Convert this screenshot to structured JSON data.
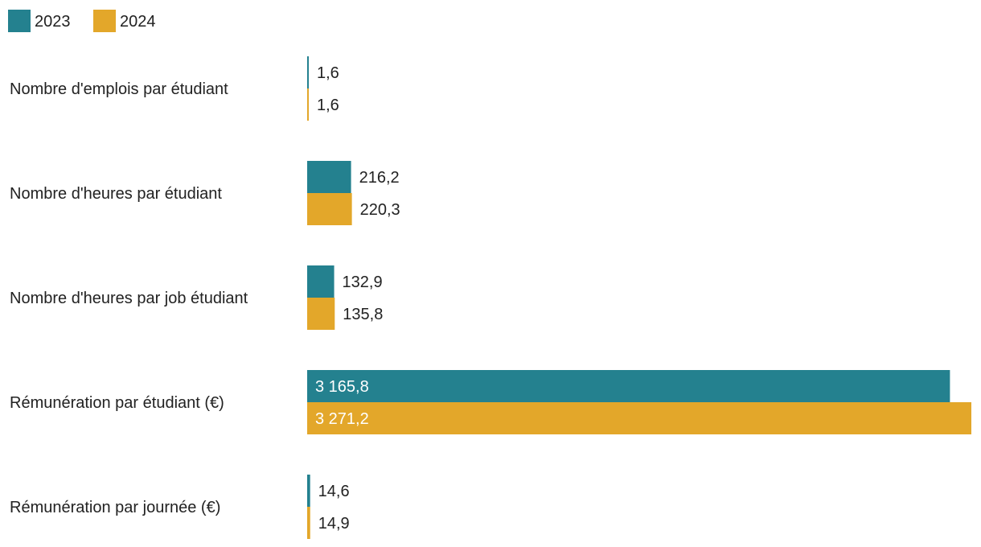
{
  "chart_data": {
    "type": "bar",
    "orientation": "horizontal",
    "title": "",
    "xlabel": "",
    "ylabel": "",
    "categories": [
      "Nombre d'emplois par étudiant",
      "Nombre d'heures par étudiant",
      "Nombre d'heures par job étudiant",
      "Rémunération par étudiant (€)",
      "Rémunération par journée (€)"
    ],
    "series": [
      {
        "name": "2023",
        "color": "#24818f",
        "values": [
          1.6,
          216.2,
          132.9,
          3165.8,
          14.6
        ],
        "labels": [
          "1,6",
          "216,2",
          "132,9",
          "3 165,8",
          "14,6"
        ]
      },
      {
        "name": "2024",
        "color": "#e3a72a",
        "values": [
          1.6,
          220.3,
          135.8,
          3271.2,
          14.9
        ],
        "labels": [
          "1,6",
          "220,3",
          "135,8",
          "3 271,2",
          "14,9"
        ]
      }
    ],
    "xlim": [
      0,
      3271.2
    ],
    "legend_position": "top-left",
    "grid": false
  }
}
